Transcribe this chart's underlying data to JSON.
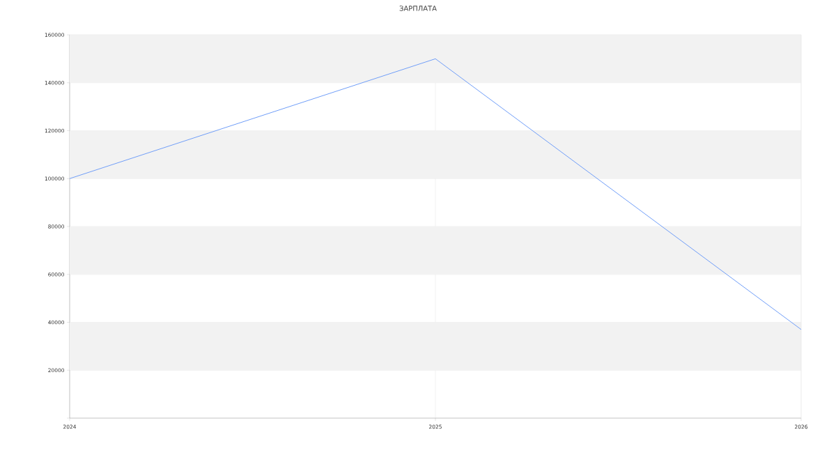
{
  "chart_data": {
    "type": "line",
    "title": "ЗАРПЛАТА",
    "x": [
      2024,
      2025,
      2026
    ],
    "series": [
      {
        "color": "#6f9ef8",
        "values": [
          100000,
          150000,
          37000
        ]
      }
    ],
    "xlim": [
      2024,
      2026
    ],
    "xticks": [
      2024,
      2025,
      2026
    ],
    "ylim": [
      0,
      160000
    ],
    "yticks": [
      {
        "value": 0,
        "label": null
      },
      20000,
      40000,
      60000,
      80000,
      100000,
      120000,
      140000,
      160000
    ],
    "bands": [
      {
        "axis": "y",
        "from": 20000,
        "to": 40000,
        "color": "#f2f2f2"
      },
      {
        "axis": "y",
        "from": 60000,
        "to": 80000,
        "color": "#f2f2f2"
      },
      {
        "axis": "y",
        "from": 100000,
        "to": 120000,
        "color": "#f2f2f2"
      },
      {
        "axis": "y",
        "from": 140000,
        "to": 160000,
        "color": "#f2f2f2"
      }
    ],
    "grid": true,
    "marker": "none",
    "line_style": "solid"
  }
}
